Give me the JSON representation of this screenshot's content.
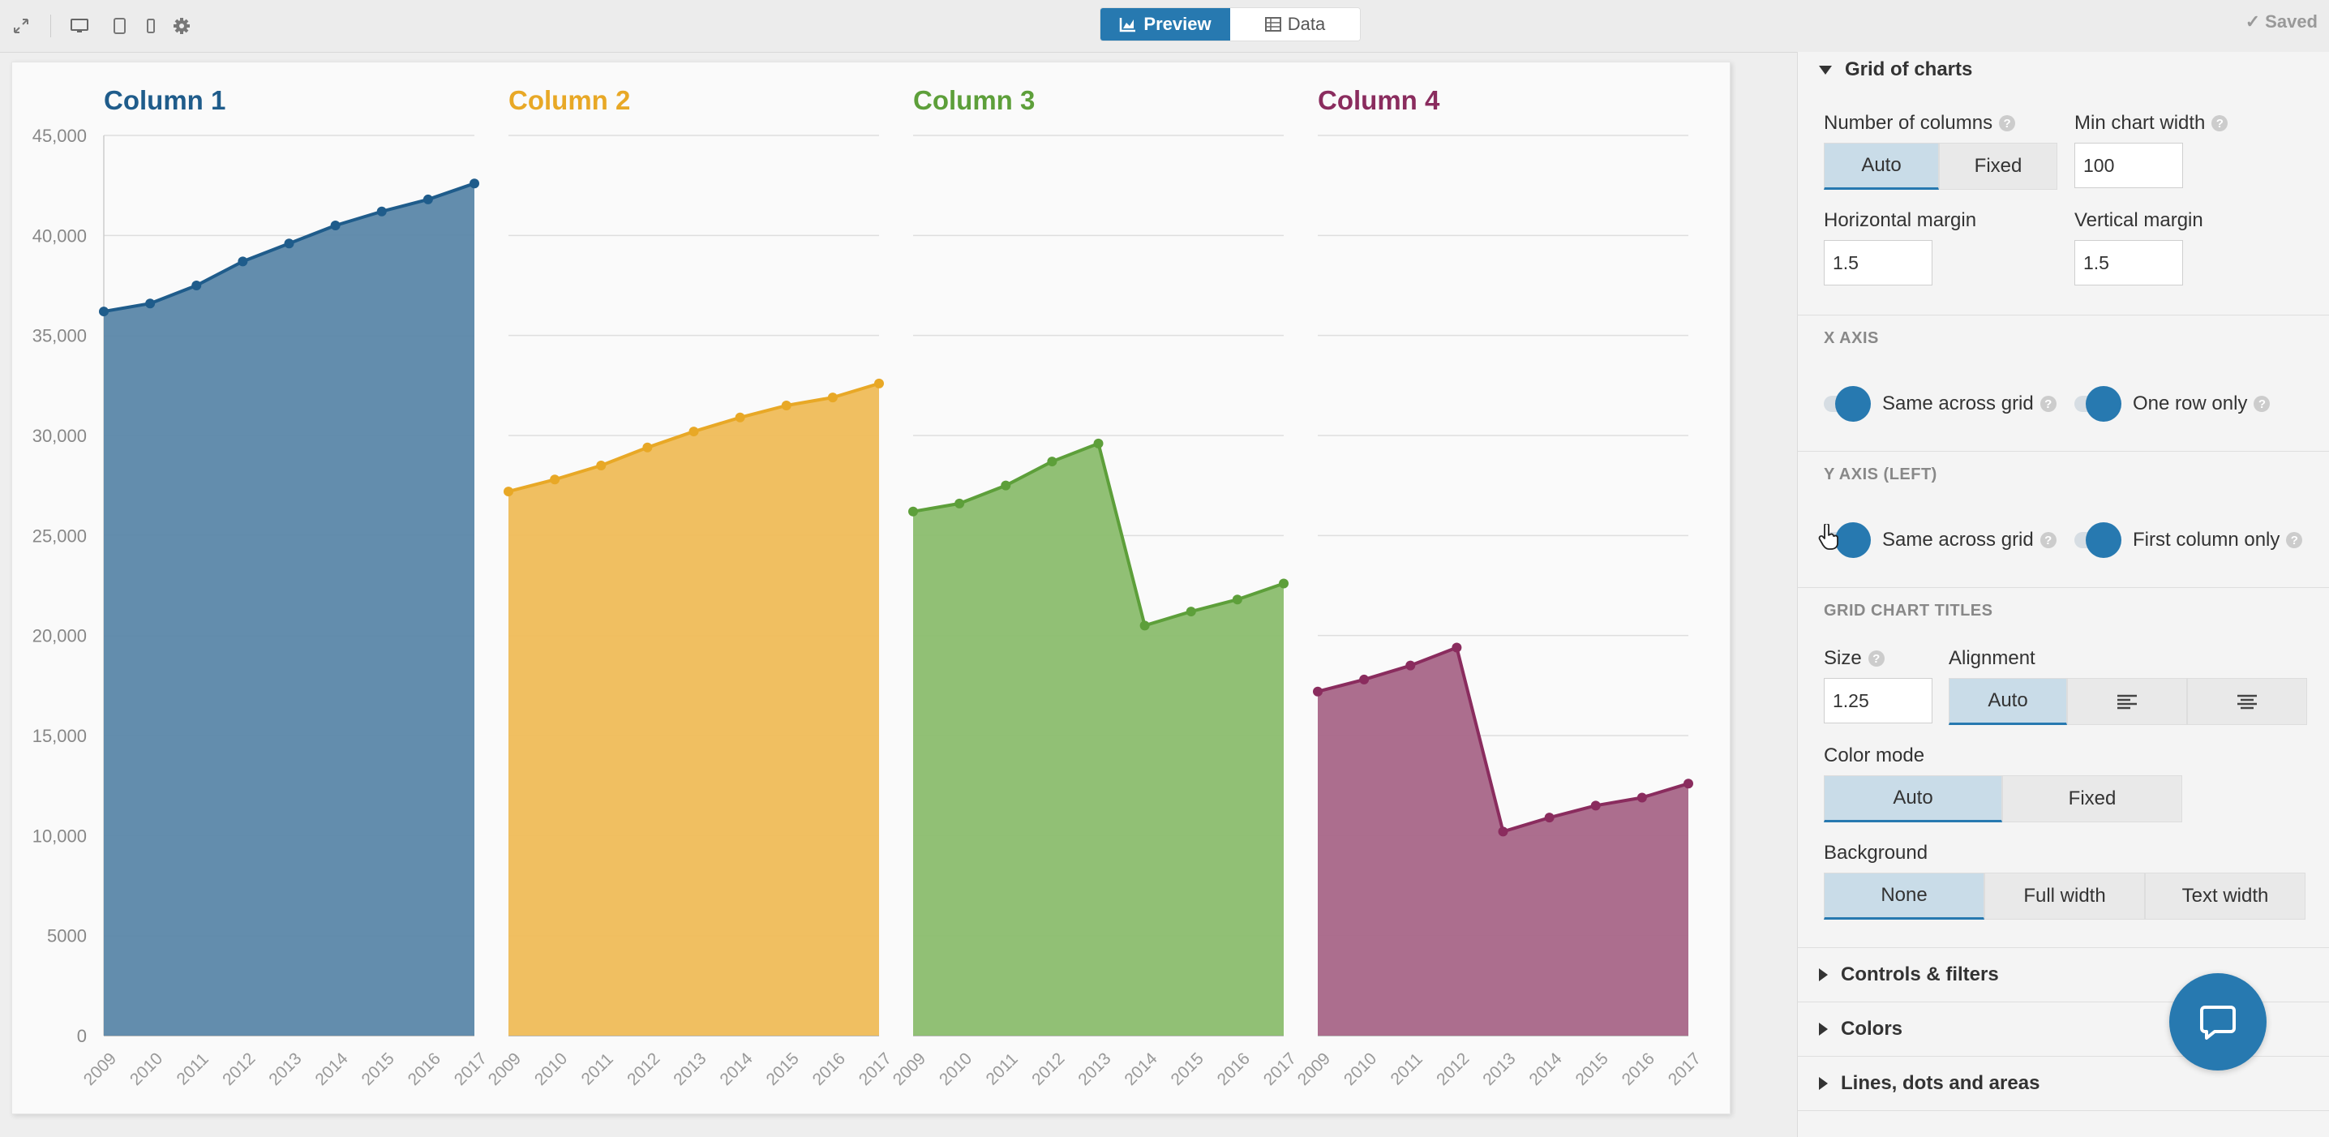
{
  "toolbar": {
    "preview_label": "Preview",
    "data_label": "Data",
    "saved_label": "Saved",
    "icons": [
      "expand-icon",
      "desktop-icon",
      "tablet-icon",
      "mobile-icon",
      "gear-icon"
    ]
  },
  "chart_data": {
    "type": "area",
    "layout": "grid-of-charts",
    "x": [
      2009,
      2010,
      2011,
      2012,
      2013,
      2014,
      2015,
      2016,
      2017
    ],
    "ylim": [
      0,
      45000
    ],
    "yticks": [
      "0",
      "5000",
      "10,000",
      "15,000",
      "20,000",
      "25,000",
      "30,000",
      "35,000",
      "40,000",
      "45,000"
    ],
    "grid": true,
    "panels": [
      {
        "name": "Column 1",
        "color": "#1f5c8b",
        "fill": "#5b87a9",
        "values": [
          36200,
          36600,
          37500,
          38700,
          39600,
          40500,
          41200,
          41800,
          42600
        ]
      },
      {
        "name": "Column 2",
        "color": "#e8a826",
        "fill": "#efbc58",
        "values": [
          27200,
          27800,
          28500,
          29400,
          30200,
          30900,
          31500,
          31900,
          32600
        ]
      },
      {
        "name": "Column 3",
        "color": "#5d9f3a",
        "fill": "#8bbd6e",
        "values": [
          26200,
          26600,
          27500,
          28700,
          29600,
          20500,
          21200,
          21800,
          22600
        ]
      },
      {
        "name": "Column 4",
        "color": "#8a2c5e",
        "fill": "#a86688",
        "values": [
          17200,
          17800,
          18500,
          19400,
          10200,
          10900,
          11500,
          11900,
          12600
        ]
      }
    ]
  },
  "panel": {
    "grid_section_title": "Grid of charts",
    "num_columns_label": "Number of columns",
    "num_columns_options": [
      "Auto",
      "Fixed"
    ],
    "min_width_label": "Min chart width",
    "min_width_value": "100",
    "h_margin_label": "Horizontal margin",
    "h_margin_value": "1.5",
    "v_margin_label": "Vertical margin",
    "v_margin_value": "1.5",
    "x_axis_head": "X AXIS",
    "x_same_label": "Same across grid",
    "x_one_row_label": "One row only",
    "y_axis_head": "Y AXIS (LEFT)",
    "y_same_label": "Same across grid",
    "y_first_col_label": "First column only",
    "titles_head": "GRID CHART TITLES",
    "size_label": "Size",
    "size_value": "1.25",
    "alignment_label": "Alignment",
    "alignment_options": [
      "Auto"
    ],
    "color_mode_label": "Color mode",
    "color_mode_options": [
      "Auto",
      "Fixed"
    ],
    "background_label": "Background",
    "background_options": [
      "None",
      "Full width",
      "Text width"
    ],
    "collapsed_sections": [
      "Controls & filters",
      "Colors",
      "Lines, dots and areas"
    ],
    "help_glyph": "?"
  }
}
